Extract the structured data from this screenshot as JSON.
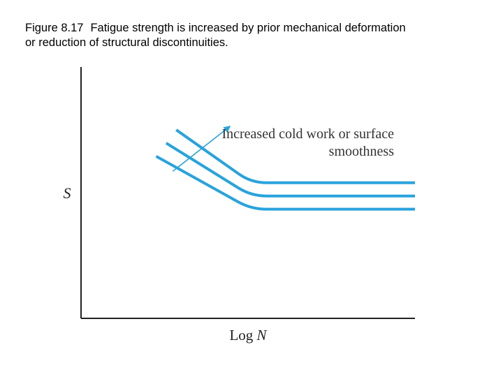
{
  "caption": {
    "figure_number": "Figure 8.17",
    "line1": "Fatigue strength is increased by prior mechanical deformation",
    "line2": "or reduction of structural discontinuities."
  },
  "chart_data": {
    "type": "line",
    "xlabel_prefix": "Log ",
    "xlabel_var": "N",
    "ylabel": "S",
    "annotation": {
      "line1": "Increased cold work or surface",
      "line2": "smoothness"
    },
    "series_color": "#29a3dc",
    "axis_color": "#222222",
    "series": [
      {
        "points": [
          [
            0.285,
            0.62
          ],
          [
            0.51,
            0.3
          ],
          [
            1.0,
            0.3
          ]
        ]
      },
      {
        "points": [
          [
            0.255,
            0.54
          ],
          [
            0.51,
            0.22
          ],
          [
            1.0,
            0.22
          ]
        ]
      },
      {
        "points": [
          [
            0.225,
            0.46
          ],
          [
            0.51,
            0.14
          ],
          [
            1.0,
            0.14
          ]
        ]
      }
    ],
    "arrow": {
      "from": [
        0.275,
        0.37
      ],
      "to": [
        0.445,
        0.64
      ]
    },
    "xlim": [
      0,
      1
    ],
    "ylim": [
      -0.52,
      1
    ],
    "grid": false,
    "ticks": false
  }
}
